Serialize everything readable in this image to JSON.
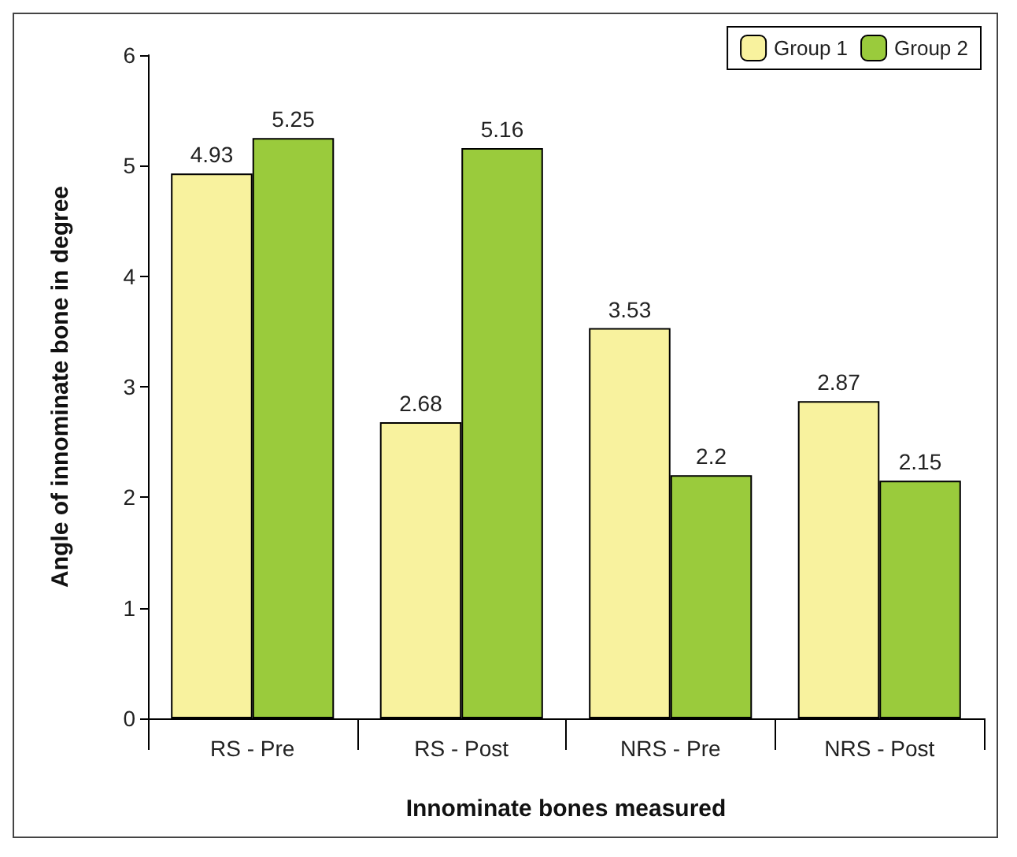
{
  "chart_data": {
    "type": "bar",
    "xlabel": "Innominate bones measured",
    "ylabel": "Angle of innominate bone in degree",
    "categories": [
      "RS - Pre",
      "RS - Post",
      "NRS - Pre",
      "NRS - Post"
    ],
    "series": [
      {
        "name": "Group 1",
        "color": "#f8f29e",
        "values": [
          4.93,
          2.68,
          3.53,
          2.87
        ]
      },
      {
        "name": "Group 2",
        "color": "#9acb3c",
        "values": [
          5.25,
          5.16,
          2.2,
          2.15
        ]
      }
    ],
    "ylim": [
      0,
      6
    ],
    "yticks": [
      0,
      1,
      2,
      3,
      4,
      5,
      6
    ],
    "grid": false,
    "legend": "top right",
    "data_labels": true
  }
}
